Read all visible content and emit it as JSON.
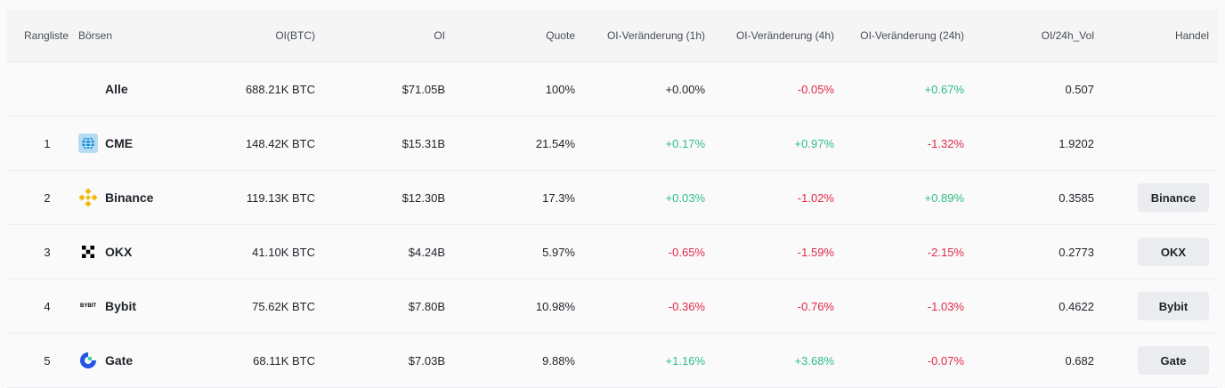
{
  "headers": {
    "rank": "Rangliste",
    "exchange": "Börsen",
    "oi_btc": "OI(BTC)",
    "oi": "OI",
    "quote": "Quote",
    "chg_1h": "OI-Veränderung (1h)",
    "chg_4h": "OI-Veränderung (4h)",
    "chg_24h": "OI-Veränderung (24h)",
    "oi_vol": "OI/24h_Vol",
    "trade": "Handel"
  },
  "colors": {
    "positive": "#2ebd85",
    "negative": "#e0294a",
    "binance": "#f0b90b",
    "gate": "#2354e6",
    "cme": "#0a6fb4"
  },
  "rows": [
    {
      "rank": "",
      "name": "Alle",
      "icon": "",
      "oi_btc": "688.21K BTC",
      "oi": "$71.05B",
      "quote": "100%",
      "chg_1h": "+0.00%",
      "chg_1h_dir": "neutral",
      "chg_4h": "-0.05%",
      "chg_4h_dir": "neg",
      "chg_24h": "+0.67%",
      "chg_24h_dir": "pos",
      "oi_vol": "0.507",
      "trade": ""
    },
    {
      "rank": "1",
      "name": "CME",
      "icon": "cme-globe-icon",
      "oi_btc": "148.42K BTC",
      "oi": "$15.31B",
      "quote": "21.54%",
      "chg_1h": "+0.17%",
      "chg_1h_dir": "pos",
      "chg_4h": "+0.97%",
      "chg_4h_dir": "pos",
      "chg_24h": "-1.32%",
      "chg_24h_dir": "neg",
      "oi_vol": "1.9202",
      "trade": ""
    },
    {
      "rank": "2",
      "name": "Binance",
      "icon": "binance-logo-icon",
      "oi_btc": "119.13K BTC",
      "oi": "$12.30B",
      "quote": "17.3%",
      "chg_1h": "+0.03%",
      "chg_1h_dir": "pos",
      "chg_4h": "-1.02%",
      "chg_4h_dir": "neg",
      "chg_24h": "+0.89%",
      "chg_24h_dir": "pos",
      "oi_vol": "0.3585",
      "trade": "Binance"
    },
    {
      "rank": "3",
      "name": "OKX",
      "icon": "okx-logo-icon",
      "oi_btc": "41.10K BTC",
      "oi": "$4.24B",
      "quote": "5.97%",
      "chg_1h": "-0.65%",
      "chg_1h_dir": "neg",
      "chg_4h": "-1.59%",
      "chg_4h_dir": "neg",
      "chg_24h": "-2.15%",
      "chg_24h_dir": "neg",
      "oi_vol": "0.2773",
      "trade": "OKX"
    },
    {
      "rank": "4",
      "name": "Bybit",
      "icon": "bybit-logo-icon",
      "icon_text": "BYBIT",
      "oi_btc": "75.62K BTC",
      "oi": "$7.80B",
      "quote": "10.98%",
      "chg_1h": "-0.36%",
      "chg_1h_dir": "neg",
      "chg_4h": "-0.76%",
      "chg_4h_dir": "neg",
      "chg_24h": "-1.03%",
      "chg_24h_dir": "neg",
      "oi_vol": "0.4622",
      "trade": "Bybit"
    },
    {
      "rank": "5",
      "name": "Gate",
      "icon": "gate-logo-icon",
      "oi_btc": "68.11K BTC",
      "oi": "$7.03B",
      "quote": "9.88%",
      "chg_1h": "+1.16%",
      "chg_1h_dir": "pos",
      "chg_4h": "+3.68%",
      "chg_4h_dir": "pos",
      "chg_24h": "-0.07%",
      "chg_24h_dir": "neg",
      "oi_vol": "0.682",
      "trade": "Gate"
    }
  ]
}
